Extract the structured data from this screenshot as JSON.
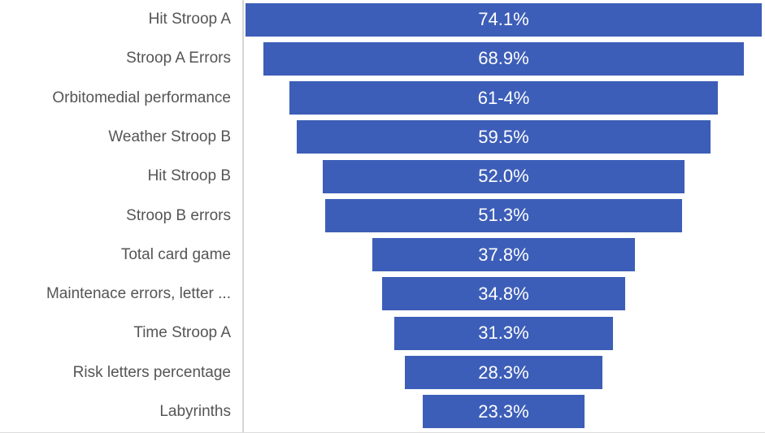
{
  "chart_data": {
    "type": "bar",
    "subtype": "funnel",
    "orientation": "horizontal-centered",
    "title": "",
    "xlabel": "",
    "ylabel": "",
    "legend": "none",
    "grid": false,
    "categories": [
      "Hit Stroop A",
      "Stroop A Errors",
      "Orbitomedial performance",
      "Weather Stroop B",
      "Hit Stroop B",
      "Stroop B errors",
      "Total card game",
      "Maintenace errors, letter ...",
      "Time Stroop A",
      "Risk letters percentage",
      "Labyrinths"
    ],
    "values": [
      74.1,
      68.9,
      61.4,
      59.5,
      52.0,
      51.3,
      37.8,
      34.8,
      31.3,
      28.3,
      23.3
    ],
    "value_labels": [
      "74.1%",
      "68.9%",
      "61-4%",
      "59.5%",
      "52.0%",
      "51.3%",
      "37.8%",
      "34.8%",
      "31.3%",
      "28.3%",
      "23.3%"
    ],
    "max_value": 74.1,
    "max_bar_width_fraction": 0.9875,
    "colors": {
      "bar": "#3d5eb8",
      "value_text": "#ffffff",
      "category_text": "#555555",
      "axis_line": "#d6d6d6",
      "baseline": "#dcdcdc",
      "background": "#ffffff"
    }
  }
}
